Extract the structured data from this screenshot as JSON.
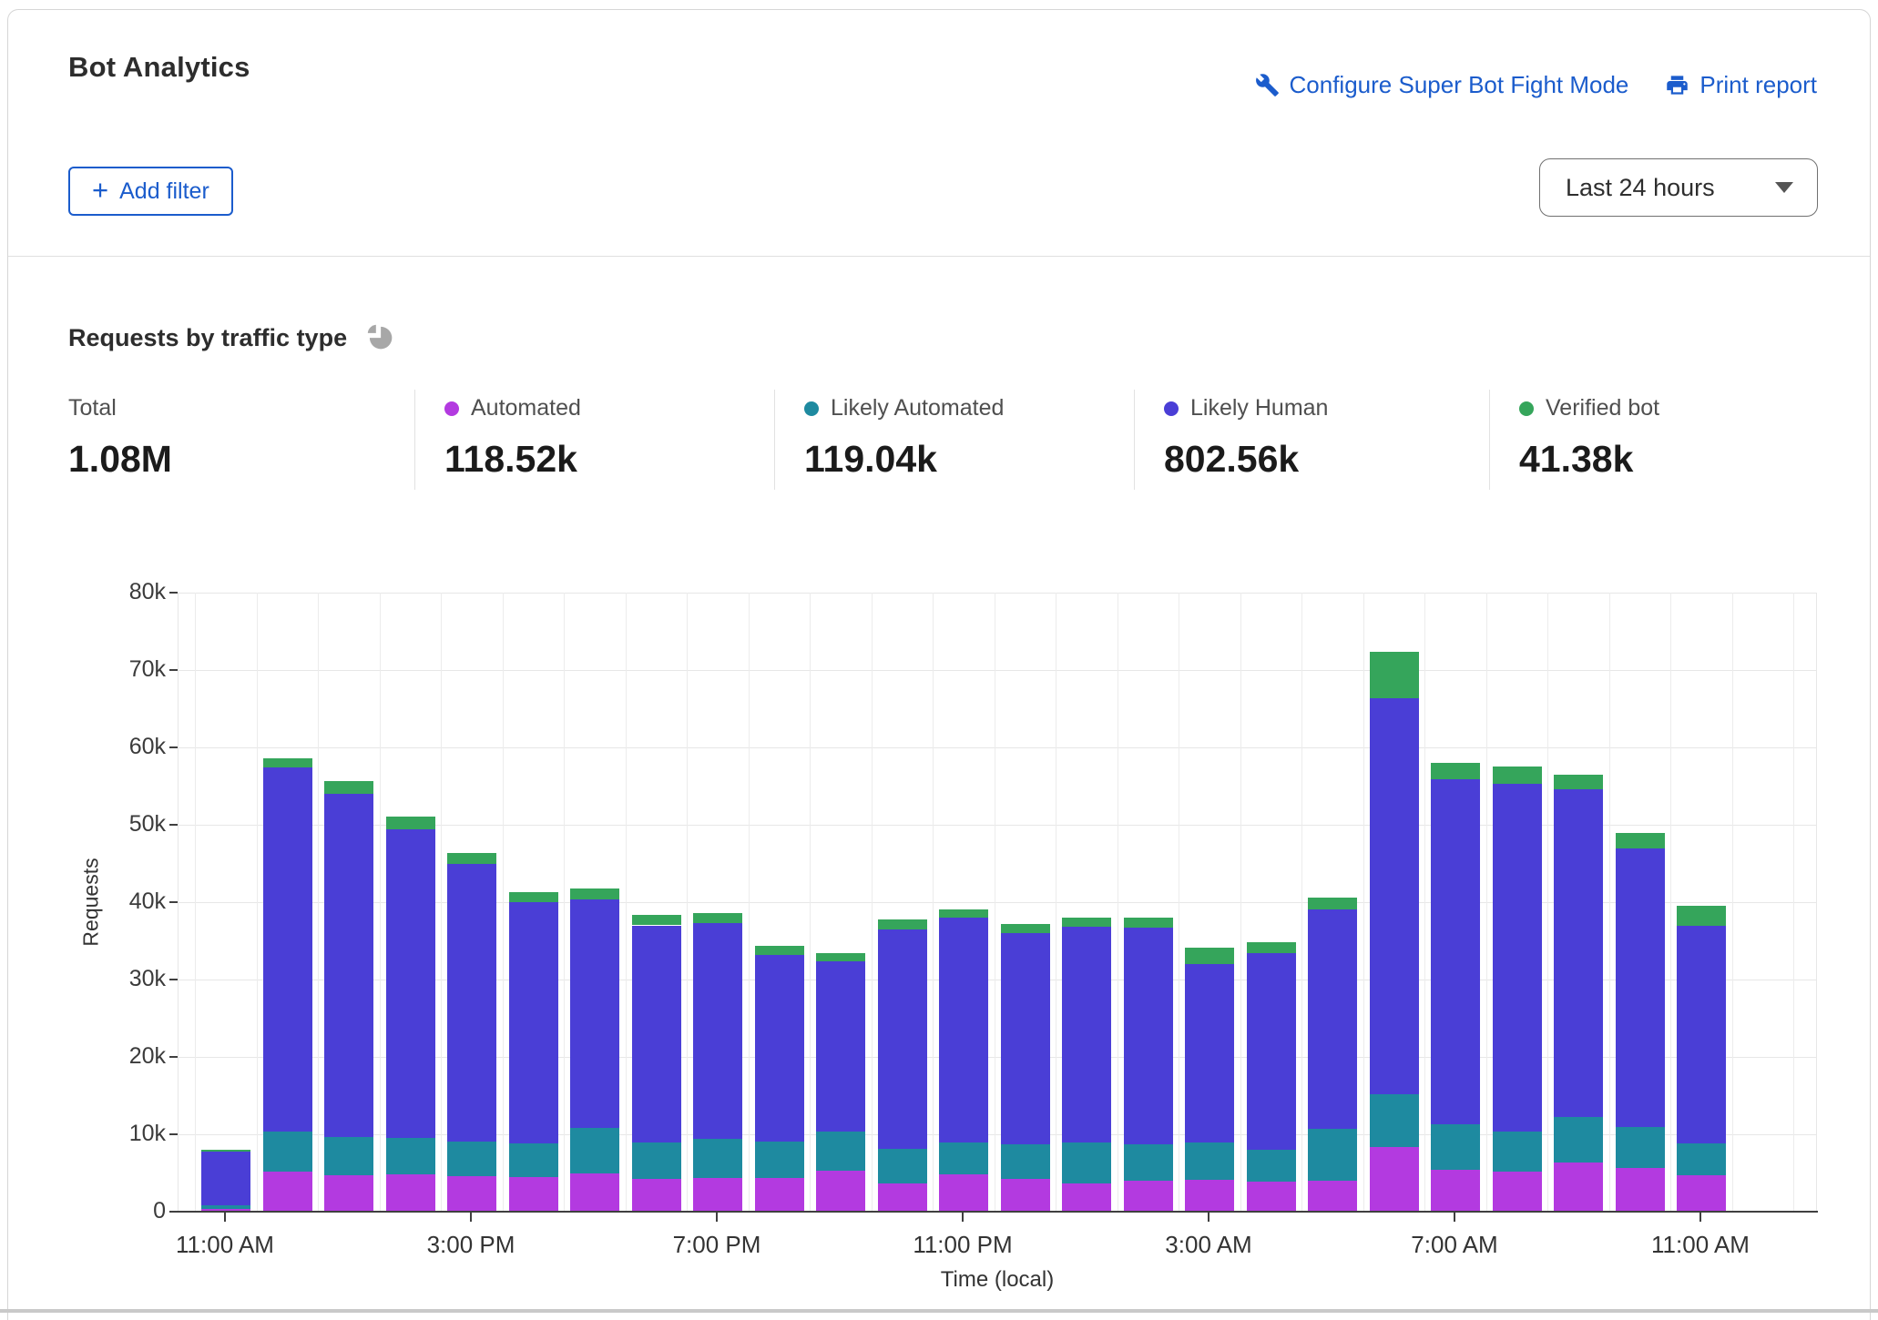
{
  "header": {
    "title": "Bot Analytics",
    "links": [
      {
        "label": "Configure Super Bot Fight Mode",
        "icon": "wrench-icon"
      },
      {
        "label": "Print report",
        "icon": "printer-icon"
      }
    ],
    "add_filter": {
      "plus": "+",
      "label": "Add filter"
    },
    "time_range_selected": "Last 24 hours"
  },
  "section": {
    "title": "Requests by traffic type"
  },
  "stats": [
    {
      "label": "Total",
      "value": "1.08M",
      "dot_color": null
    },
    {
      "label": "Automated",
      "value": "118.52k",
      "dot_color": "#b33ae0"
    },
    {
      "label": "Likely Automated",
      "value": "119.04k",
      "dot_color": "#1e8aa0"
    },
    {
      "label": "Likely Human",
      "value": "802.56k",
      "dot_color": "#4a3ed6"
    },
    {
      "label": "Verified bot",
      "value": "41.38k",
      "dot_color": "#35a55b"
    }
  ],
  "colors": {
    "automated": "#b33ae0",
    "likely_automated": "#1e8aa0",
    "likely_human": "#4a3ed6",
    "verified_bot": "#35a55b",
    "link_blue": "#1b5ccc",
    "grid": "#e7e7e7",
    "axis": "#3f3f3f",
    "pie_icon_gray": "#a7a7a7"
  },
  "chart_data": {
    "type": "bar",
    "stacked": true,
    "title": "Requests by traffic type",
    "ylabel": "Requests",
    "xlabel": "Time (local)",
    "unit": "thousands of requests per hour",
    "ylim_k": [
      0,
      80
    ],
    "ytick_step_k": 10,
    "ytick_labels": [
      "0",
      "10k",
      "20k",
      "30k",
      "40k",
      "50k",
      "60k",
      "70k",
      "80k"
    ],
    "grid": true,
    "legend_position": "stats-row-above-chart",
    "n_bars": 25,
    "x_tick_positions": [
      0,
      4,
      8,
      12,
      16,
      20,
      24
    ],
    "x_tick_labels": [
      "11:00 AM",
      "3:00 PM",
      "7:00 PM",
      "11:00 PM",
      "3:00 AM",
      "7:00 AM",
      "11:00 AM"
    ],
    "series": [
      {
        "name": "Automated",
        "key": "automated",
        "color": "#b33ae0",
        "values_k": [
          0.4,
          5.2,
          4.7,
          4.8,
          4.6,
          4.5,
          4.9,
          4.2,
          4.4,
          4.3,
          5.3,
          3.7,
          4.8,
          4.2,
          3.7,
          4.0,
          4.1,
          3.9,
          4.0,
          8.4,
          5.4,
          5.2,
          6.3,
          5.6,
          4.7
        ]
      },
      {
        "name": "Likely Automated",
        "key": "likely-automated",
        "color": "#1e8aa0",
        "values_k": [
          0.4,
          5.2,
          4.9,
          4.7,
          4.5,
          4.3,
          5.9,
          4.8,
          5.0,
          4.8,
          5.1,
          4.4,
          4.1,
          4.5,
          5.2,
          4.7,
          4.8,
          4.1,
          6.7,
          6.8,
          5.9,
          5.2,
          5.9,
          5.3,
          4.1
        ]
      },
      {
        "name": "Likely Human",
        "key": "likely-human",
        "color": "#4a3ed6",
        "values_k": [
          7.0,
          47.0,
          44.4,
          39.9,
          35.8,
          31.2,
          29.5,
          28.0,
          27.9,
          24.1,
          21.9,
          28.4,
          29.1,
          27.3,
          27.9,
          28.0,
          23.1,
          25.4,
          28.4,
          51.2,
          44.6,
          44.9,
          42.4,
          36.0,
          28.2
        ]
      },
      {
        "name": "Verified bot",
        "key": "verified-bot",
        "color": "#35a55b",
        "values_k": [
          0.2,
          1.2,
          1.6,
          1.7,
          1.4,
          1.3,
          1.5,
          1.3,
          1.3,
          1.2,
          1.1,
          1.3,
          1.1,
          1.2,
          1.2,
          1.3,
          2.1,
          1.4,
          1.5,
          6.0,
          2.1,
          2.2,
          1.9,
          2.1,
          2.5
        ]
      }
    ]
  }
}
